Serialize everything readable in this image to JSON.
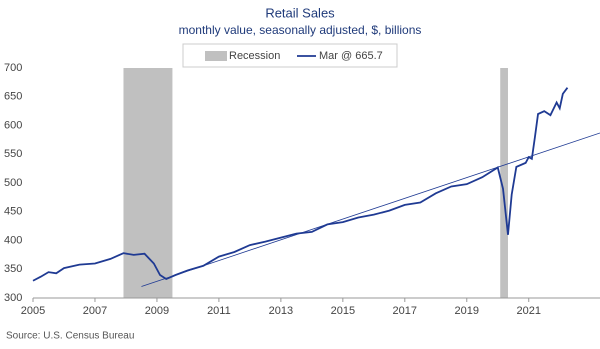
{
  "chart_data": {
    "type": "line",
    "title": "Retail Sales",
    "subtitle": "monthly value, seasonally adjusted, $, billions",
    "source": "Source: U.S. Census Bureau",
    "xlim": [
      2005,
      2023.3
    ],
    "ylim": [
      300,
      700
    ],
    "xticks": [
      2005,
      2007,
      2009,
      2011,
      2013,
      2015,
      2017,
      2019,
      2021
    ],
    "yticks": [
      300,
      350,
      400,
      450,
      500,
      550,
      600,
      650,
      700
    ],
    "recession": {
      "name": "Recession",
      "color": "#c0c0c0",
      "spans": [
        [
          2007.92,
          2009.5
        ],
        [
          2020.08,
          2020.33
        ]
      ]
    },
    "trend": {
      "color": "#1f3a93",
      "x": [
        2008.5,
        2023.3
      ],
      "values": [
        320,
        587
      ]
    },
    "series": [
      {
        "name": "Mar @ 665.7",
        "color": "#1f3a93",
        "x": [
          2005.0,
          2005.25,
          2005.5,
          2005.75,
          2006.0,
          2006.5,
          2007.0,
          2007.5,
          2007.92,
          2008.25,
          2008.6,
          2008.9,
          2009.1,
          2009.3,
          2009.6,
          2010.0,
          2010.5,
          2011.0,
          2011.5,
          2012.0,
          2012.5,
          2013.0,
          2013.5,
          2014.0,
          2014.5,
          2015.0,
          2015.5,
          2016.0,
          2016.5,
          2017.0,
          2017.5,
          2018.0,
          2018.5,
          2019.0,
          2019.5,
          2020.0,
          2020.17,
          2020.33,
          2020.45,
          2020.6,
          2020.9,
          2021.0,
          2021.1,
          2021.2,
          2021.3,
          2021.5,
          2021.7,
          2021.9,
          2022.0,
          2022.1,
          2022.25
        ],
        "values": [
          330,
          337,
          345,
          343,
          352,
          358,
          360,
          368,
          378,
          375,
          377,
          360,
          340,
          333,
          340,
          348,
          356,
          372,
          380,
          392,
          398,
          405,
          412,
          415,
          428,
          432,
          440,
          445,
          452,
          462,
          466,
          482,
          494,
          498,
          510,
          527,
          490,
          410,
          480,
          528,
          535,
          545,
          542,
          580,
          620,
          625,
          618,
          640,
          630,
          655,
          665.7
        ]
      }
    ]
  }
}
